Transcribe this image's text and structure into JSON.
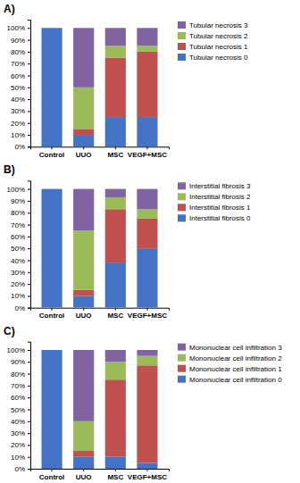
{
  "chart_data": [
    {
      "type": "bar",
      "title": "A)",
      "stacked": true,
      "legend": "upper right",
      "categories": [
        "Control",
        "UUO",
        "MSC",
        "VEGF+MSC"
      ],
      "series": [
        {
          "name": "Tubular necrosis 0",
          "color": "#4472C4",
          "values": [
            100,
            10,
            25,
            25
          ]
        },
        {
          "name": "Tubular necrosis 1",
          "color": "#C0504D",
          "values": [
            0,
            5,
            50,
            55
          ]
        },
        {
          "name": "Tubular necrosis 2",
          "color": "#9BBB59",
          "values": [
            0,
            35,
            10,
            5
          ]
        },
        {
          "name": "Tubular necrosis 3",
          "color": "#8064A2",
          "values": [
            0,
            50,
            15,
            15
          ]
        }
      ],
      "ylim": [
        0,
        107
      ],
      "yticks": [
        {
          "value": 0,
          "label": "0%"
        },
        {
          "value": 10,
          "label": "10%"
        },
        {
          "value": 20,
          "label": "20%"
        },
        {
          "value": 30,
          "label": "30%"
        },
        {
          "value": 40,
          "label": "40%"
        },
        {
          "value": 50,
          "label": "50%"
        },
        {
          "value": 60,
          "label": "60%"
        },
        {
          "value": 70,
          "label": "70%"
        },
        {
          "value": 80,
          "label": "80%"
        },
        {
          "value": 90,
          "label": "90%"
        },
        {
          "value": 100,
          "label": "100%"
        }
      ]
    },
    {
      "type": "bar",
      "title": "B)",
      "stacked": true,
      "legend": "upper right",
      "categories": [
        "Control",
        "UUO",
        "MSC",
        "VEGF+MSC"
      ],
      "series": [
        {
          "name": "Interstitial fibrosis 0",
          "color": "#4472C4",
          "values": [
            100,
            10,
            38,
            50
          ]
        },
        {
          "name": "Interstitial fibrosis 1",
          "color": "#C0504D",
          "values": [
            0,
            5,
            45,
            25
          ]
        },
        {
          "name": "Interstitial fibrosis 2",
          "color": "#9BBB59",
          "values": [
            0,
            50,
            10,
            8
          ]
        },
        {
          "name": "Interstitial fibrosis 3",
          "color": "#8064A2",
          "values": [
            0,
            35,
            7,
            17
          ]
        }
      ],
      "ylim": [
        0,
        107
      ],
      "yticks": [
        {
          "value": 0,
          "label": "0%"
        },
        {
          "value": 10,
          "label": "10%"
        },
        {
          "value": 20,
          "label": "20%"
        },
        {
          "value": 30,
          "label": "30%"
        },
        {
          "value": 40,
          "label": "40%"
        },
        {
          "value": 50,
          "label": "50%"
        },
        {
          "value": 60,
          "label": "60%"
        },
        {
          "value": 70,
          "label": "70%"
        },
        {
          "value": 80,
          "label": "80%"
        },
        {
          "value": 90,
          "label": "90%"
        },
        {
          "value": 100,
          "label": "100%"
        }
      ]
    },
    {
      "type": "bar",
      "title": "C)",
      "stacked": true,
      "legend": "upper right",
      "categories": [
        "Control",
        "UUO",
        "MSC",
        "VEGF+MSC"
      ],
      "series": [
        {
          "name": "Mononuclear cell infiltration 0",
          "color": "#4472C4",
          "values": [
            100,
            10,
            10,
            5
          ]
        },
        {
          "name": "Mononuclear cell infiltration 1",
          "color": "#C0504D",
          "values": [
            0,
            5,
            65,
            82
          ]
        },
        {
          "name": "Mononuclear cell infiltration 2",
          "color": "#9BBB59",
          "values": [
            0,
            25,
            15,
            8
          ]
        },
        {
          "name": "Mononuclear cell infiltration 3",
          "color": "#8064A2",
          "values": [
            0,
            60,
            10,
            5
          ]
        }
      ],
      "ylim": [
        0,
        107
      ],
      "yticks": [
        {
          "value": 0,
          "label": "0%"
        },
        {
          "value": 10,
          "label": "10%"
        },
        {
          "value": 20,
          "label": "20%"
        },
        {
          "value": 30,
          "label": "30%"
        },
        {
          "value": 40,
          "label": "40%"
        },
        {
          "value": 50,
          "label": "50%"
        },
        {
          "value": 60,
          "label": "60%"
        },
        {
          "value": 70,
          "label": "70%"
        },
        {
          "value": 80,
          "label": "80%"
        },
        {
          "value": 90,
          "label": "90%"
        },
        {
          "value": 100,
          "label": "100%"
        }
      ]
    }
  ]
}
